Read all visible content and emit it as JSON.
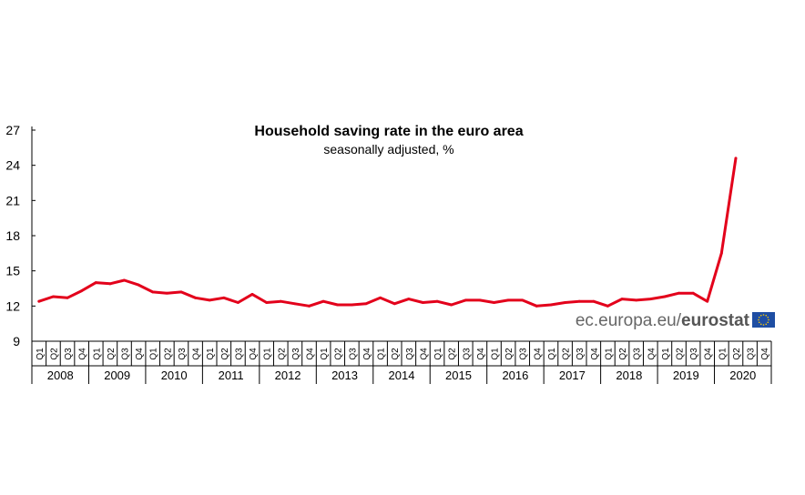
{
  "chart_data": {
    "type": "line",
    "title": "Household saving rate in the euro area",
    "subtitle": "seasonally adjusted, %",
    "xlabel": "",
    "ylabel": "",
    "ylim": [
      9,
      27
    ],
    "yticks": [
      "27",
      "24",
      "21",
      "18",
      "15",
      "12",
      "9"
    ],
    "grid": false,
    "years": [
      "2008",
      "2009",
      "2010",
      "2011",
      "2012",
      "2013",
      "2014",
      "2015",
      "2016",
      "2017",
      "2018",
      "2019",
      "2020"
    ],
    "quarters": [
      "Q1",
      "Q2",
      "Q3",
      "Q4"
    ],
    "line_color": "#e3001b",
    "series": [
      {
        "values": [
          12.4,
          12.8,
          12.7,
          13.3,
          14.0,
          13.9,
          14.2,
          13.8,
          13.2,
          13.1,
          13.2,
          12.7,
          12.5,
          12.7,
          12.3,
          13.0,
          12.3,
          12.4,
          12.2,
          12.0,
          12.4,
          12.1,
          12.1,
          12.2,
          12.7,
          12.2,
          12.6,
          12.3,
          12.4,
          12.1,
          12.5,
          12.5,
          12.3,
          12.5,
          12.5,
          12.0,
          12.1,
          12.3,
          12.4,
          12.4,
          12.0,
          12.6,
          12.5,
          12.6,
          12.8,
          13.1,
          13.1,
          12.4,
          16.5,
          24.6
        ]
      }
    ]
  },
  "branding": {
    "site": "ec.europa.eu/",
    "name": "eurostat",
    "flag_color": "#1f4ea3",
    "star_color": "#ffcc00"
  }
}
